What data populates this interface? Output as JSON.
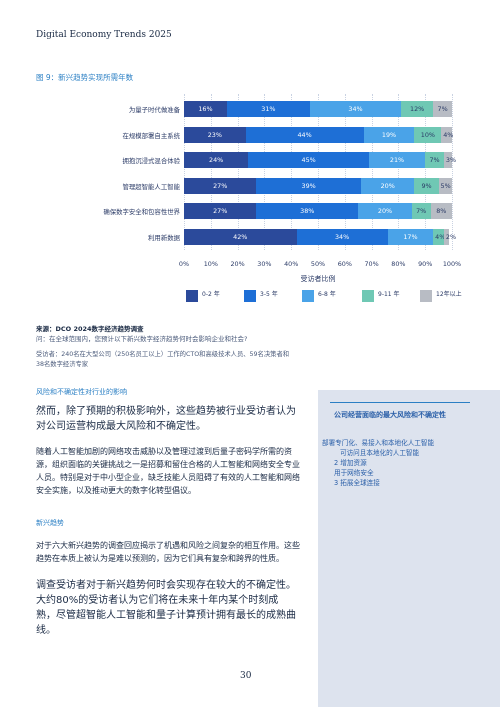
{
  "header": {
    "running_title": "Digital Economy Trends 2025"
  },
  "figure": {
    "title": "图 9：新兴趋势实现所需年数"
  },
  "chart_data": {
    "type": "bar",
    "orientation": "horizontal-stacked-100",
    "categories": [
      "为量子时代做准备",
      "在规模部署自主系统",
      "拥抱沉浸式混合体验",
      "管理超智能人工智能",
      "确保数字安全和包容性世界",
      "利用新数据"
    ],
    "series": [
      {
        "name": "0-2 年",
        "color": "#2b4a9b",
        "values": [
          16,
          23,
          24,
          27,
          27,
          42
        ]
      },
      {
        "name": "3-5 年",
        "color": "#1e6fd6",
        "values": [
          31,
          44,
          45,
          39,
          38,
          34
        ]
      },
      {
        "name": "6-8 年",
        "color": "#4aa3e8",
        "values": [
          34,
          19,
          21,
          20,
          20,
          17
        ]
      },
      {
        "name": "9-11 年",
        "color": "#6fc8b4",
        "values": [
          12,
          10,
          7,
          9,
          7,
          4
        ]
      },
      {
        "name": "12年以上",
        "color": "#b8bcc4",
        "values": [
          7,
          4,
          3,
          5,
          8,
          2
        ]
      }
    ],
    "xlabel": "受访者比例",
    "xlim": [
      0,
      100
    ],
    "xticks": [
      "0%",
      "10%",
      "20%",
      "30%",
      "40%",
      "50%",
      "60%",
      "70%",
      "80%",
      "90%",
      "100%"
    ],
    "legend_position": "bottom",
    "grid": true
  },
  "source": {
    "title": "来源：DCO 2024数字经济趋势调查",
    "question": "问：在全球范围内，您预计以下新兴数字经济趋势何时会影响企业和社会?",
    "respondents": "受访者：240名在大型公司（250名员工以上）工作的CTO和高级技术人员、59名决策者和38名数字经济专家"
  },
  "section1": {
    "label": "风险和不确定性对行业的影响",
    "lead": "然而，除了预期的积极影响外，这些趋势被行业受访者认为对公司运营构成最大风险和不确定性。",
    "body": "随着人工智能加剧的网络攻击威胁以及管理过渡到后量子密码学所需的资源，组织面临的关键挑战之一是招募和留住合格的人工智能和网络安全专业人员。特别是对于中小型企业，缺乏技能人员阻碍了有效的人工智能和网络安全实施，以及推动更大的数字化转型倡议。"
  },
  "section2": {
    "label": "新兴趋势",
    "body": "对于六大新兴趋势的调查回应揭示了机遇和风险之间复杂的相互作用。这些趋势在本质上被认为是难以预测的，因为它们具有复杂和跨界的性质。",
    "lead": "调查受访者对于新兴趋势何时会实现存在较大的不确定性。大约80%的受访者认为它们将在未来十年内某个时刻成熟，尽管超智能人工智能和量子计算预计拥有最长的成熟曲线。"
  },
  "sidebar": {
    "title": "公司经营面临的最大风险和不确定性",
    "items": [
      "部署专门化、易接入和本地化人工智能",
      "可访问且本地化的人工智能",
      "2  增加资源",
      "用于网络安全",
      "3  拓展全球连接"
    ]
  },
  "footer": {
    "page_number": "30"
  }
}
